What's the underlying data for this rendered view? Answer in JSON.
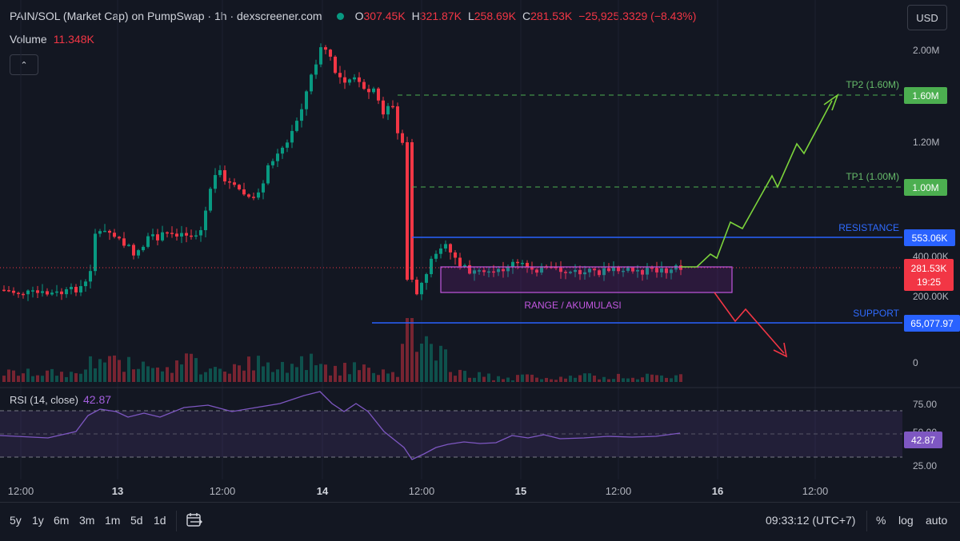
{
  "header": {
    "title": "PAIN/SOL (Market Cap) on PumpSwap · 1h · dexscreener.com",
    "o_label": "O",
    "o_value": "307.45K",
    "h_label": "H",
    "h_value": "321.87K",
    "l_label": "L",
    "l_value": "258.69K",
    "c_label": "C",
    "c_value": "281.53K",
    "change": "−25,925.3329 (−8.43%)"
  },
  "volume": {
    "label": "Volume",
    "value": "11.348K"
  },
  "currency": "USD",
  "price_axis": {
    "ticks": [
      "2.00M",
      "1.60M",
      "1.20M",
      "1.00M",
      "553.06K",
      "400.00K",
      "281.53K",
      "200.00K",
      "65,077.97",
      "0"
    ],
    "current_price": "281.53K",
    "countdown": "19:25"
  },
  "annotations": {
    "tp2": "TP2 (1.60M)",
    "tp1": "TP1 (1.00M)",
    "resistance": "RESISTANCE",
    "support": "SUPPORT",
    "range": "RANGE / AKUMULASI"
  },
  "rsi": {
    "label": "RSI (14, close)",
    "value": "42.87",
    "ticks": [
      "75.00",
      "50.00",
      "25.00"
    ]
  },
  "time_axis": [
    "12:00",
    "13",
    "12:00",
    "14",
    "12:00",
    "15",
    "12:00",
    "16",
    "12:00"
  ],
  "bottom_bar": {
    "ranges": [
      "5y",
      "1y",
      "6m",
      "3m",
      "1m",
      "5d",
      "1d"
    ],
    "clock": "09:33:12 (UTC+7)",
    "percent": "%",
    "log": "log",
    "auto": "auto"
  },
  "colors": {
    "up": "#089981",
    "down": "#f23645",
    "rsi": "#7e57c2",
    "level": "#2962ff",
    "target": "#4caf50"
  },
  "chart_data": {
    "type": "candlestick",
    "title": "PAIN/SOL (Market Cap) on PumpSwap · 1h · dexscreener.com",
    "interval": "1h",
    "xlim": [
      "12 12:00",
      "16 18:00"
    ],
    "ylim": [
      0,
      2100000
    ],
    "series": [
      {
        "name": "Market Cap",
        "last_close": 281530
      },
      {
        "name": "RSI (14, close)",
        "last": 42.87,
        "ylim": [
          0,
          100
        ]
      }
    ],
    "levels": [
      {
        "label": "TP2 (1.60M)",
        "value": 1600000
      },
      {
        "label": "TP1 (1.00M)",
        "value": 1000000
      },
      {
        "label": "RESISTANCE",
        "value": 553060
      },
      {
        "label": "SUPPORT",
        "value": 65077.97
      }
    ],
    "range_box": {
      "label": "RANGE / AKUMULASI",
      "low": 200000,
      "high": 290000
    }
  }
}
